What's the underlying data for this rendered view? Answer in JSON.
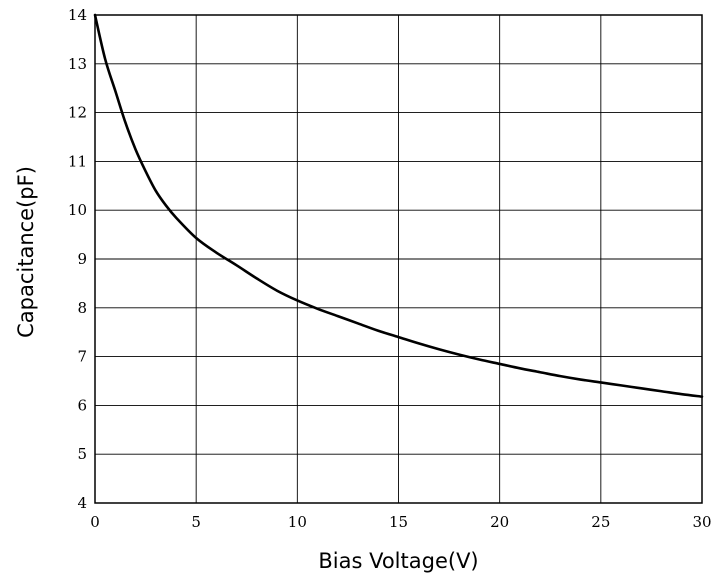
{
  "chart_data": {
    "type": "line",
    "title": "",
    "xlabel": "Bias Voltage(V)",
    "ylabel": "Capacitance(pF)",
    "xlim": [
      0,
      30
    ],
    "ylim": [
      4,
      14
    ],
    "x_ticks": [
      "0",
      "5",
      "10",
      "15",
      "20",
      "25",
      "30"
    ],
    "y_ticks": [
      "4",
      "5",
      "6",
      "7",
      "8",
      "9",
      "10",
      "11",
      "12",
      "13",
      "14"
    ],
    "grid": true,
    "colors": {
      "line": "#000000",
      "grid": "#000000",
      "background": "#ffffff"
    },
    "series": [
      {
        "x": [
          0,
          0.5,
          1,
          1.5,
          2,
          2.5,
          3,
          3.5,
          4,
          5,
          6,
          7,
          8,
          9,
          10,
          11,
          12,
          13,
          14,
          15,
          16,
          17,
          18,
          19,
          20,
          21,
          22,
          23,
          24,
          25,
          26,
          27,
          28,
          29,
          30
        ],
        "values": [
          14.0,
          13.1,
          12.45,
          11.8,
          11.25,
          10.8,
          10.4,
          10.1,
          9.85,
          9.43,
          9.13,
          8.87,
          8.6,
          8.35,
          8.15,
          7.98,
          7.83,
          7.68,
          7.53,
          7.4,
          7.27,
          7.15,
          7.04,
          6.94,
          6.85,
          6.76,
          6.68,
          6.6,
          6.53,
          6.47,
          6.41,
          6.35,
          6.29,
          6.23,
          6.18
        ]
      }
    ]
  }
}
